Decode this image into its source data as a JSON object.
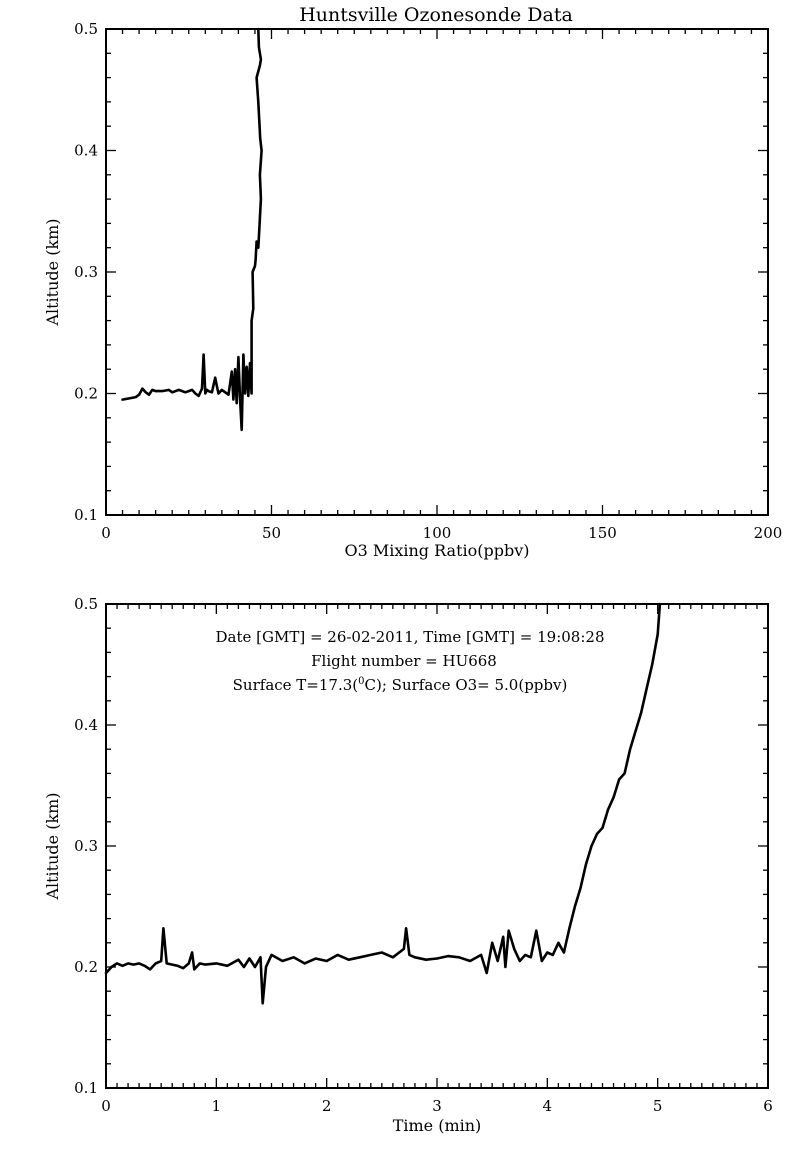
{
  "chart_data": [
    {
      "type": "line",
      "title": "Huntsville Ozonesonde Data",
      "xlabel": "O3 Mixing Ratio(ppbv)",
      "ylabel": "Altitude (km)",
      "xlim": [
        0,
        200
      ],
      "ylim": [
        0.1,
        0.5
      ],
      "xticks": [
        "0",
        "50",
        "100",
        "150",
        "200"
      ],
      "yticks": [
        "0.1",
        "0.2",
        "0.3",
        "0.4",
        "0.5"
      ],
      "grid": false,
      "series": [
        {
          "x": [
            5,
            7,
            9,
            10,
            11,
            12,
            13,
            14,
            15,
            17,
            19,
            20,
            22,
            24,
            26,
            27,
            28,
            29,
            29.5,
            30,
            30.5,
            31,
            32,
            33,
            33.5,
            34,
            35,
            36,
            37,
            38,
            38.5,
            39,
            39.5,
            40,
            40.5,
            41,
            41.5,
            42,
            42.5,
            43,
            43.5,
            44,
            44,
            44.5,
            44.3,
            45,
            45.2,
            45.5,
            46,
            46.3,
            46.8,
            46.5,
            47,
            46.6,
            46,
            45.5,
            46.5,
            46.8,
            46.2,
            46
          ],
          "y": [
            0.195,
            0.196,
            0.197,
            0.199,
            0.204,
            0.201,
            0.199,
            0.203,
            0.202,
            0.202,
            0.203,
            0.201,
            0.203,
            0.201,
            0.203,
            0.2,
            0.198,
            0.204,
            0.232,
            0.2,
            0.203,
            0.202,
            0.201,
            0.213,
            0.206,
            0.2,
            0.203,
            0.201,
            0.199,
            0.218,
            0.195,
            0.22,
            0.192,
            0.23,
            0.195,
            0.17,
            0.232,
            0.2,
            0.222,
            0.198,
            0.225,
            0.2,
            0.26,
            0.27,
            0.3,
            0.305,
            0.31,
            0.325,
            0.32,
            0.335,
            0.36,
            0.38,
            0.4,
            0.41,
            0.44,
            0.46,
            0.47,
            0.475,
            0.485,
            0.5
          ]
        }
      ]
    },
    {
      "type": "line",
      "title": "",
      "xlabel": "Time (min)",
      "ylabel": "Altitude (km)",
      "xlim": [
        0,
        6
      ],
      "ylim": [
        0.1,
        0.5
      ],
      "xticks": [
        "0",
        "1",
        "2",
        "3",
        "4",
        "5",
        "6"
      ],
      "yticks": [
        "0.1",
        "0.2",
        "0.3",
        "0.4",
        "0.5"
      ],
      "grid": false,
      "annotations": [
        "Date [GMT] = 26-02-2011,  Time [GMT] = 19:08:28",
        "Flight number = HU668"
      ],
      "annotation_surface": {
        "prefix": "Surface T=17.3(",
        "superscript": "0",
        "suffix": "C); Surface O3= 5.0(ppbv)"
      },
      "series": [
        {
          "x": [
            0,
            0.05,
            0.1,
            0.15,
            0.2,
            0.25,
            0.3,
            0.35,
            0.4,
            0.45,
            0.5,
            0.52,
            0.55,
            0.6,
            0.65,
            0.7,
            0.75,
            0.78,
            0.8,
            0.85,
            0.9,
            1.0,
            1.1,
            1.2,
            1.25,
            1.3,
            1.35,
            1.4,
            1.42,
            1.45,
            1.5,
            1.6,
            1.7,
            1.8,
            1.9,
            2.0,
            2.1,
            2.2,
            2.3,
            2.4,
            2.5,
            2.6,
            2.7,
            2.72,
            2.75,
            2.8,
            2.9,
            3.0,
            3.1,
            3.2,
            3.3,
            3.4,
            3.45,
            3.5,
            3.55,
            3.6,
            3.62,
            3.65,
            3.7,
            3.75,
            3.8,
            3.85,
            3.9,
            3.95,
            4.0,
            4.05,
            4.1,
            4.15,
            4.2,
            4.25,
            4.3,
            4.35,
            4.4,
            4.45,
            4.5,
            4.55,
            4.6,
            4.65,
            4.7,
            4.75,
            4.8,
            4.85,
            4.9,
            4.95,
            5.0,
            5.02
          ],
          "y": [
            0.195,
            0.2,
            0.203,
            0.201,
            0.203,
            0.202,
            0.203,
            0.201,
            0.198,
            0.203,
            0.205,
            0.232,
            0.203,
            0.202,
            0.201,
            0.199,
            0.203,
            0.212,
            0.198,
            0.203,
            0.202,
            0.203,
            0.201,
            0.206,
            0.2,
            0.207,
            0.2,
            0.208,
            0.17,
            0.2,
            0.21,
            0.205,
            0.208,
            0.203,
            0.207,
            0.205,
            0.21,
            0.206,
            0.208,
            0.21,
            0.212,
            0.208,
            0.215,
            0.232,
            0.21,
            0.208,
            0.206,
            0.207,
            0.209,
            0.208,
            0.205,
            0.21,
            0.195,
            0.22,
            0.205,
            0.225,
            0.2,
            0.23,
            0.215,
            0.205,
            0.21,
            0.208,
            0.23,
            0.205,
            0.212,
            0.21,
            0.22,
            0.212,
            0.232,
            0.25,
            0.265,
            0.285,
            0.3,
            0.31,
            0.315,
            0.33,
            0.34,
            0.355,
            0.36,
            0.38,
            0.395,
            0.41,
            0.43,
            0.45,
            0.475,
            0.5
          ]
        }
      ]
    }
  ]
}
